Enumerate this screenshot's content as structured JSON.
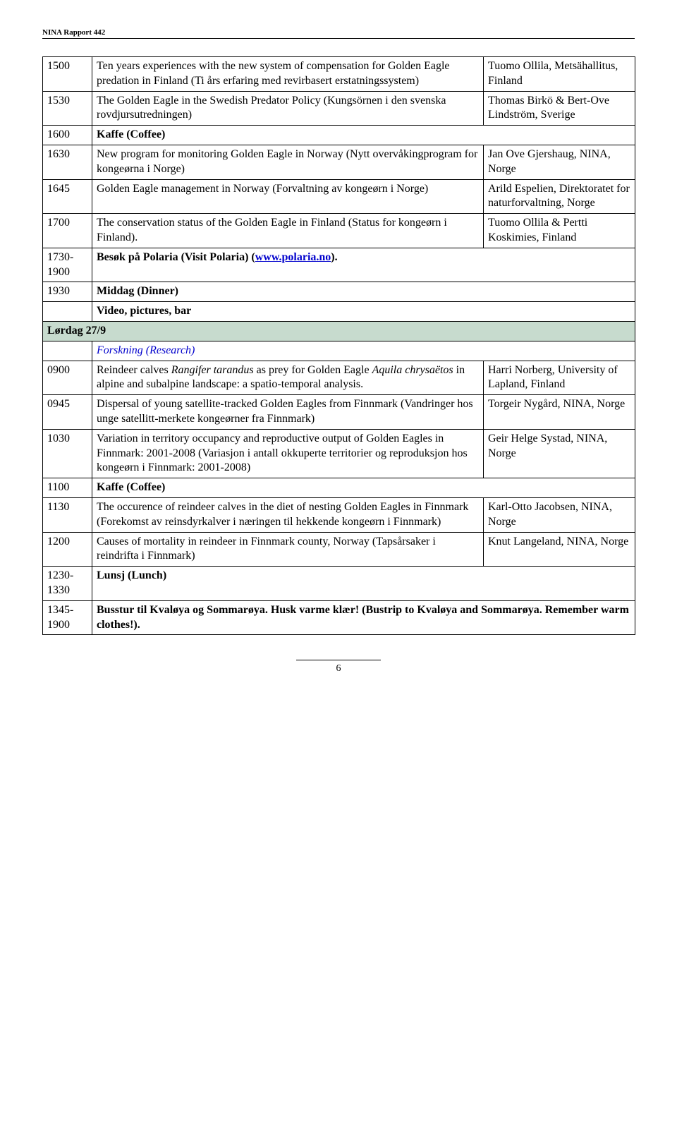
{
  "header": {
    "report_label": "NINA Rapport 442"
  },
  "rows": {
    "r1": {
      "time": "1500",
      "text": "Ten years experiences with the new system of compensation for Golden Eagle predation in Finland (Ti års erfaring med revirbasert erstatningssystem)",
      "right": "Tuomo Ollila, Metsähallitus, Finland"
    },
    "r2": {
      "time": "1530",
      "text": "The Golden Eagle in the Swedish Predator Policy (Kungsörnen i den svenska rovdjursutredningen)",
      "right": "Thomas Birkö & Bert-Ove Lindström, Sverige"
    },
    "r3": {
      "time": "1600",
      "text": "Kaffe (Coffee)"
    },
    "r4": {
      "time": "1630",
      "text": "New program for monitoring Golden Eagle in Norway (Nytt overvåkingprogram for kongeørna i Norge)",
      "right": "Jan Ove Gjershaug, NINA, Norge"
    },
    "r5": {
      "time": "1645",
      "text": "Golden Eagle management in Norway (Forvaltning av kongeørn i Norge)",
      "right": "Arild Espelien, Direktoratet for naturforvaltning, Norge"
    },
    "r6": {
      "time": "1700",
      "text": "The conservation status of the Golden Eagle in Finland (Status for kongeørn i Finland).",
      "right": "Tuomo Ollila & Pertti Koskimies, Finland"
    },
    "r7": {
      "time": "1730-1900",
      "prefix": "Besøk på Polaria (Visit Polaria) (",
      "link_text": "www.polaria.no",
      "suffix": ")."
    },
    "r8": {
      "time": "1930",
      "text": "Middag (Dinner)"
    },
    "r9": {
      "text": "Video, pictures, bar"
    },
    "section": {
      "label": "Lørdag 27/9"
    },
    "r10": {
      "text": "Forskning (Research)"
    },
    "r11": {
      "time": "0900",
      "prefix": "Reindeer calves ",
      "ital1": "Rangifer tarandus",
      "mid": " as prey for Golden Eagle ",
      "ital2": "Aquila chrysaëtos",
      "suffix": " in alpine and subalpine landscape: a spatio-temporal analysis.",
      "right": "Harri Norberg, University of Lapland, Finland"
    },
    "r12": {
      "time": "0945",
      "text": "Dispersal of young satellite-tracked Golden Eagles from Finnmark (Vandringer hos unge satellitt-merkete kongeørner fra Finnmark)",
      "right": "Torgeir Nygård, NINA, Norge"
    },
    "r13": {
      "time": "1030",
      "text": "Variation in territory occupancy and reproductive output of Golden Eagles in Finnmark: 2001-2008 (Variasjon i antall okkuperte territorier og reproduksjon hos kongeørn i Finnmark: 2001-2008)",
      "right": "Geir Helge Systad,  NINA, Norge"
    },
    "r14": {
      "time": "1100",
      "text": "Kaffe (Coffee)"
    },
    "r15": {
      "time": "1130",
      "text": "The occurence of reindeer calves in the diet of nesting Golden Eagles in Finnmark (Forekomst av reinsdyrkalver i næringen til hekkende kongeørn i Finnmark)",
      "right": "Karl-Otto Jacobsen, NINA, Norge"
    },
    "r16": {
      "time": "1200",
      "text": "Causes of mortality in reindeer in Finnmark county, Norway (Tapsårsaker i reindrifta i Finnmark)",
      "right": "Knut Langeland, NINA, Norge"
    },
    "r17": {
      "time": "1230-1330",
      "text": "Lunsj (Lunch)"
    },
    "r18": {
      "time": "1345-1900",
      "text": "Busstur til Kvaløya og Sommarøya. Husk varme klær!  (Bustrip to Kvaløya and Sommarøya. Remember warm clothes!)."
    }
  },
  "footer": {
    "page": "6"
  }
}
